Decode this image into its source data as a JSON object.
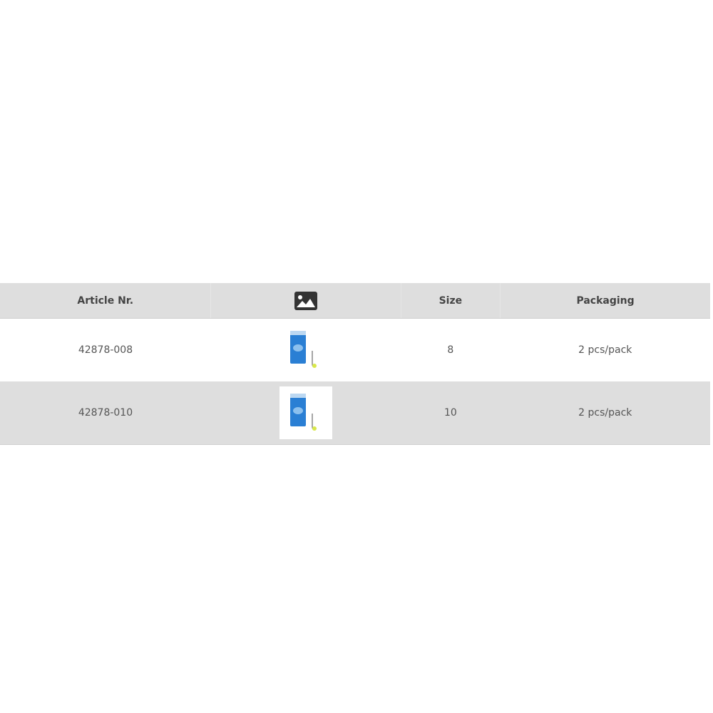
{
  "table": {
    "headers": {
      "article": "Article Nr.",
      "image_icon": "image-icon",
      "size": "Size",
      "packaging": "Packaging"
    },
    "rows": [
      {
        "article": "42878-008",
        "size": "8",
        "packaging": "2 pcs/pack"
      },
      {
        "article": "42878-010",
        "size": "10",
        "packaging": "2 pcs/pack"
      }
    ]
  },
  "colors": {
    "header_bg": "#dedede",
    "pack_blue": "#2a7fd4",
    "hook_yellow": "#d8e84a"
  }
}
